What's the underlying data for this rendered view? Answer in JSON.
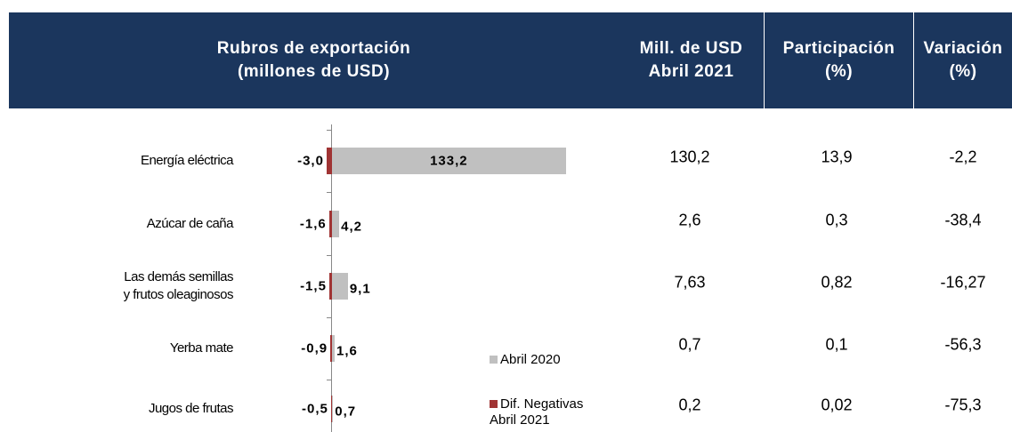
{
  "header": {
    "columns": [
      [
        "Rubros de exportación",
        "(millones de USD)"
      ],
      [
        "Mill. de USD",
        "Abril 2021"
      ],
      [
        "Participación",
        "(%)"
      ],
      [
        "Variación",
        "(%)"
      ]
    ]
  },
  "chart_data": {
    "type": "bar",
    "orientation": "horizontal",
    "categories": [
      "Energía eléctrica",
      "Azúcar de caña",
      "Las demás semillas\ny frutos oleaginosos",
      "Yerba mate",
      "Jugos de frutas"
    ],
    "series": [
      {
        "name": "Abril 2020",
        "color": "#c0c0c0",
        "values": [
          133.2,
          4.2,
          9.1,
          1.6,
          0.7
        ],
        "value_labels": [
          "133,2",
          "4,2",
          "9,1",
          "1,6",
          "0,7"
        ]
      },
      {
        "name": "Dif. Negativas Abril 2021",
        "color": "#a03434",
        "values": [
          -3.0,
          -1.6,
          -1.5,
          -0.9,
          -0.5
        ],
        "value_labels": [
          "-3,0",
          "-1,6",
          "-1,5",
          "-0,9",
          "-0,5"
        ]
      }
    ],
    "xlim": [
      -5,
      150
    ]
  },
  "table": {
    "rows": [
      [
        "130,2",
        "13,9",
        "-2,2"
      ],
      [
        "2,6",
        "0,3",
        "-38,4"
      ],
      [
        "7,63",
        "0,82",
        "-16,27"
      ],
      [
        "0,7",
        "0,1",
        "-56,3"
      ],
      [
        "0,2",
        "0,02",
        "-75,3"
      ]
    ]
  }
}
